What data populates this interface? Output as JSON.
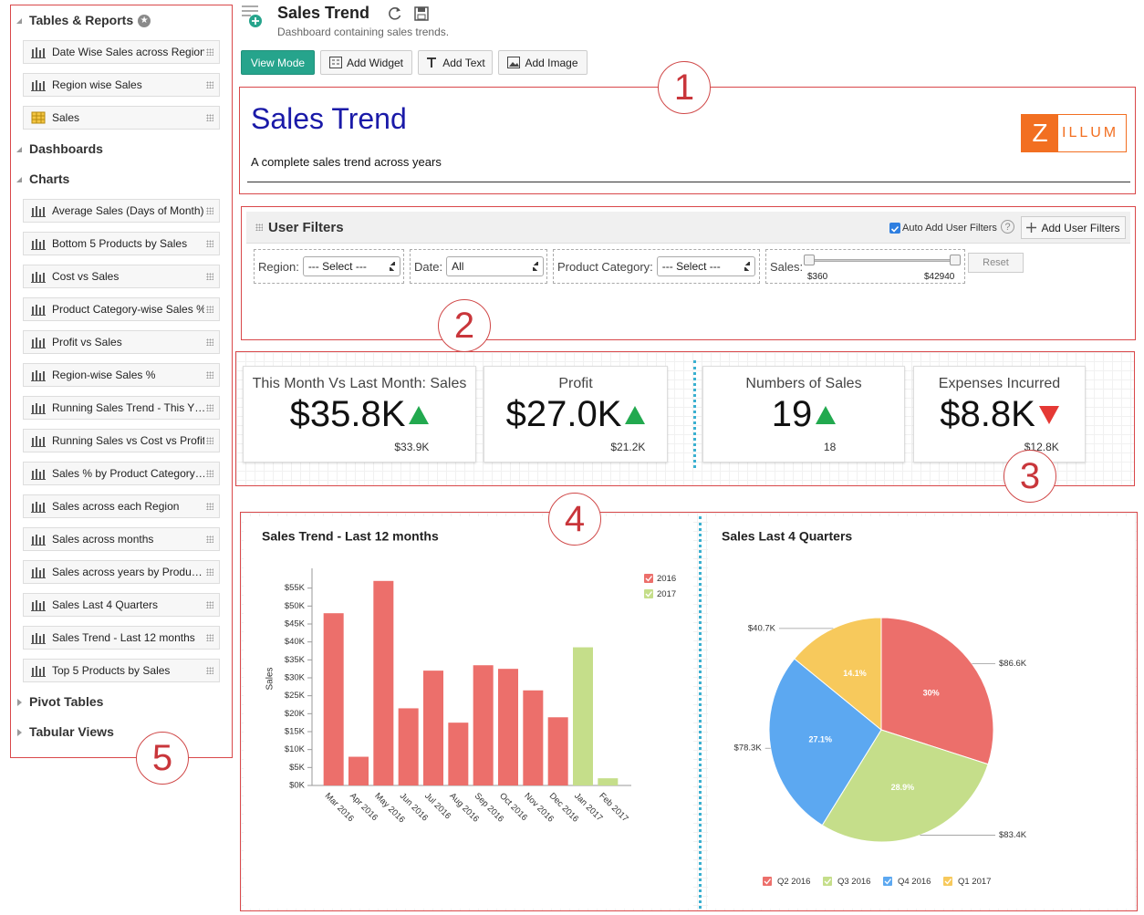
{
  "header": {
    "title": "Sales Trend",
    "subtitle": "Dashboard containing sales trends."
  },
  "toolbar": [
    "View Mode",
    "Add Widget",
    "Add Text",
    "Add Image"
  ],
  "sidebar": {
    "sections": [
      {
        "title": "Tables & Reports",
        "expanded": true,
        "items": [
          {
            "name": "Date Wise Sales across Region",
            "icon": "chart"
          },
          {
            "name": "Region wise Sales",
            "icon": "chart"
          },
          {
            "name": "Sales",
            "icon": "table"
          }
        ]
      },
      {
        "title": "Dashboards",
        "expanded": true
      },
      {
        "title": "Charts",
        "expanded": true,
        "items": [
          {
            "name": "Average Sales (Days of Month)",
            "icon": "chart"
          },
          {
            "name": "Bottom 5 Products by Sales",
            "icon": "chart"
          },
          {
            "name": "Cost vs Sales",
            "icon": "chart"
          },
          {
            "name": "Product Category-wise Sales %",
            "icon": "chart"
          },
          {
            "name": "Profit vs Sales",
            "icon": "chart"
          },
          {
            "name": "Region-wise Sales %",
            "icon": "chart"
          },
          {
            "name": "Running Sales Trend - This Y…",
            "icon": "chart"
          },
          {
            "name": "Running Sales vs Cost vs Profit",
            "icon": "chart"
          },
          {
            "name": "Sales % by Product Category…",
            "icon": "chart"
          },
          {
            "name": "Sales across each Region",
            "icon": "chart"
          },
          {
            "name": "Sales across months",
            "icon": "chart"
          },
          {
            "name": "Sales across years by Produ…",
            "icon": "chart"
          },
          {
            "name": "Sales Last 4 Quarters",
            "icon": "chart"
          },
          {
            "name": "Sales Trend - Last 12 months",
            "icon": "chart"
          },
          {
            "name": "Top 5 Products by Sales",
            "icon": "chart"
          }
        ]
      },
      {
        "title": "Pivot Tables",
        "expanded": false
      },
      {
        "title": "Tabular Views",
        "expanded": false
      }
    ]
  },
  "callouts": [
    1,
    2,
    3,
    4,
    5
  ],
  "banner": {
    "title": "Sales Trend",
    "text": "A complete sales trend across years",
    "logo": [
      "Z",
      "ILLUM"
    ]
  },
  "filters": {
    "title": "User Filters",
    "auto_add": "Auto Add User Filters",
    "help": "?",
    "add_button": "Add User Filters",
    "fields": [
      {
        "label": "Region:",
        "value": "--- Select ---"
      },
      {
        "label": "Date:",
        "value": "All"
      },
      {
        "label": "Product Category:",
        "value": "--- Select ---"
      }
    ],
    "slider": {
      "label": "Sales:",
      "min": "$360",
      "max": "$42940"
    },
    "reset": "Reset"
  },
  "kpis": [
    {
      "title": "This Month Vs Last Month: Sales",
      "value": "$35.8K",
      "trend": "up",
      "previous": "$33.9K"
    },
    {
      "title": "Profit",
      "value": "$27.0K",
      "trend": "up",
      "previous": "$21.2K"
    },
    {
      "title": "Numbers of Sales",
      "value": "19",
      "trend": "up",
      "previous": "18"
    },
    {
      "title": "Expenses Incurred",
      "value": "$8.8K",
      "trend": "down",
      "previous": "$12.8K"
    }
  ],
  "chart_data": [
    {
      "type": "bar",
      "title": "Sales Trend - Last 12 months",
      "y_label": "Sales",
      "categories": [
        "Mar 2016",
        "Apr 2016",
        "May 2016",
        "Jun 2016",
        "Jul 2016",
        "Aug 2016",
        "Sep 2016",
        "Oct 2016",
        "Nov 2016",
        "Dec 2016",
        "Jan 2017",
        "Feb 2017"
      ],
      "series": [
        {
          "name": "2016",
          "color": "#ec6f6b",
          "values": [
            48,
            8,
            57,
            21.5,
            32,
            17.5,
            33.5,
            32.5,
            26.5,
            19,
            null,
            null
          ]
        },
        {
          "name": "2017",
          "color": "#c5de8a",
          "values": [
            null,
            null,
            null,
            null,
            null,
            null,
            null,
            null,
            null,
            null,
            38.5,
            2
          ]
        }
      ],
      "ylim": [
        0,
        60
      ],
      "yticks": [
        {
          "value": 0,
          "label": "$0K"
        },
        {
          "value": 5,
          "label": "$5K"
        },
        {
          "value": 10,
          "label": "$10K"
        },
        {
          "value": 15,
          "label": "$15K"
        },
        {
          "value": 20,
          "label": "$20K"
        },
        {
          "value": 25,
          "label": "$25K"
        },
        {
          "value": 30,
          "label": "$30K"
        },
        {
          "value": 35,
          "label": "$35K"
        },
        {
          "value": 40,
          "label": "$40K"
        },
        {
          "value": 45,
          "label": "$45K"
        },
        {
          "value": 50,
          "label": "$50K"
        },
        {
          "value": 55,
          "label": "$55K"
        }
      ],
      "grid": false
    },
    {
      "type": "pie",
      "title": "Sales Last 4 Quarters",
      "categories": [
        "Q2 2016",
        "Q3 2016",
        "Q4 2016",
        "Q1 2017"
      ],
      "values": [
        86.6,
        83.4,
        78.3,
        40.7
      ],
      "value_labels": [
        "$86.6K",
        "$83.4K",
        "$78.3K",
        "$40.7K"
      ],
      "percent_labels": [
        "30%",
        "28.9%",
        "27.1%",
        "14.1%"
      ],
      "colors": [
        "#ec6f6b",
        "#c5de8a",
        "#5ca8f1",
        "#f7c95c"
      ]
    }
  ]
}
